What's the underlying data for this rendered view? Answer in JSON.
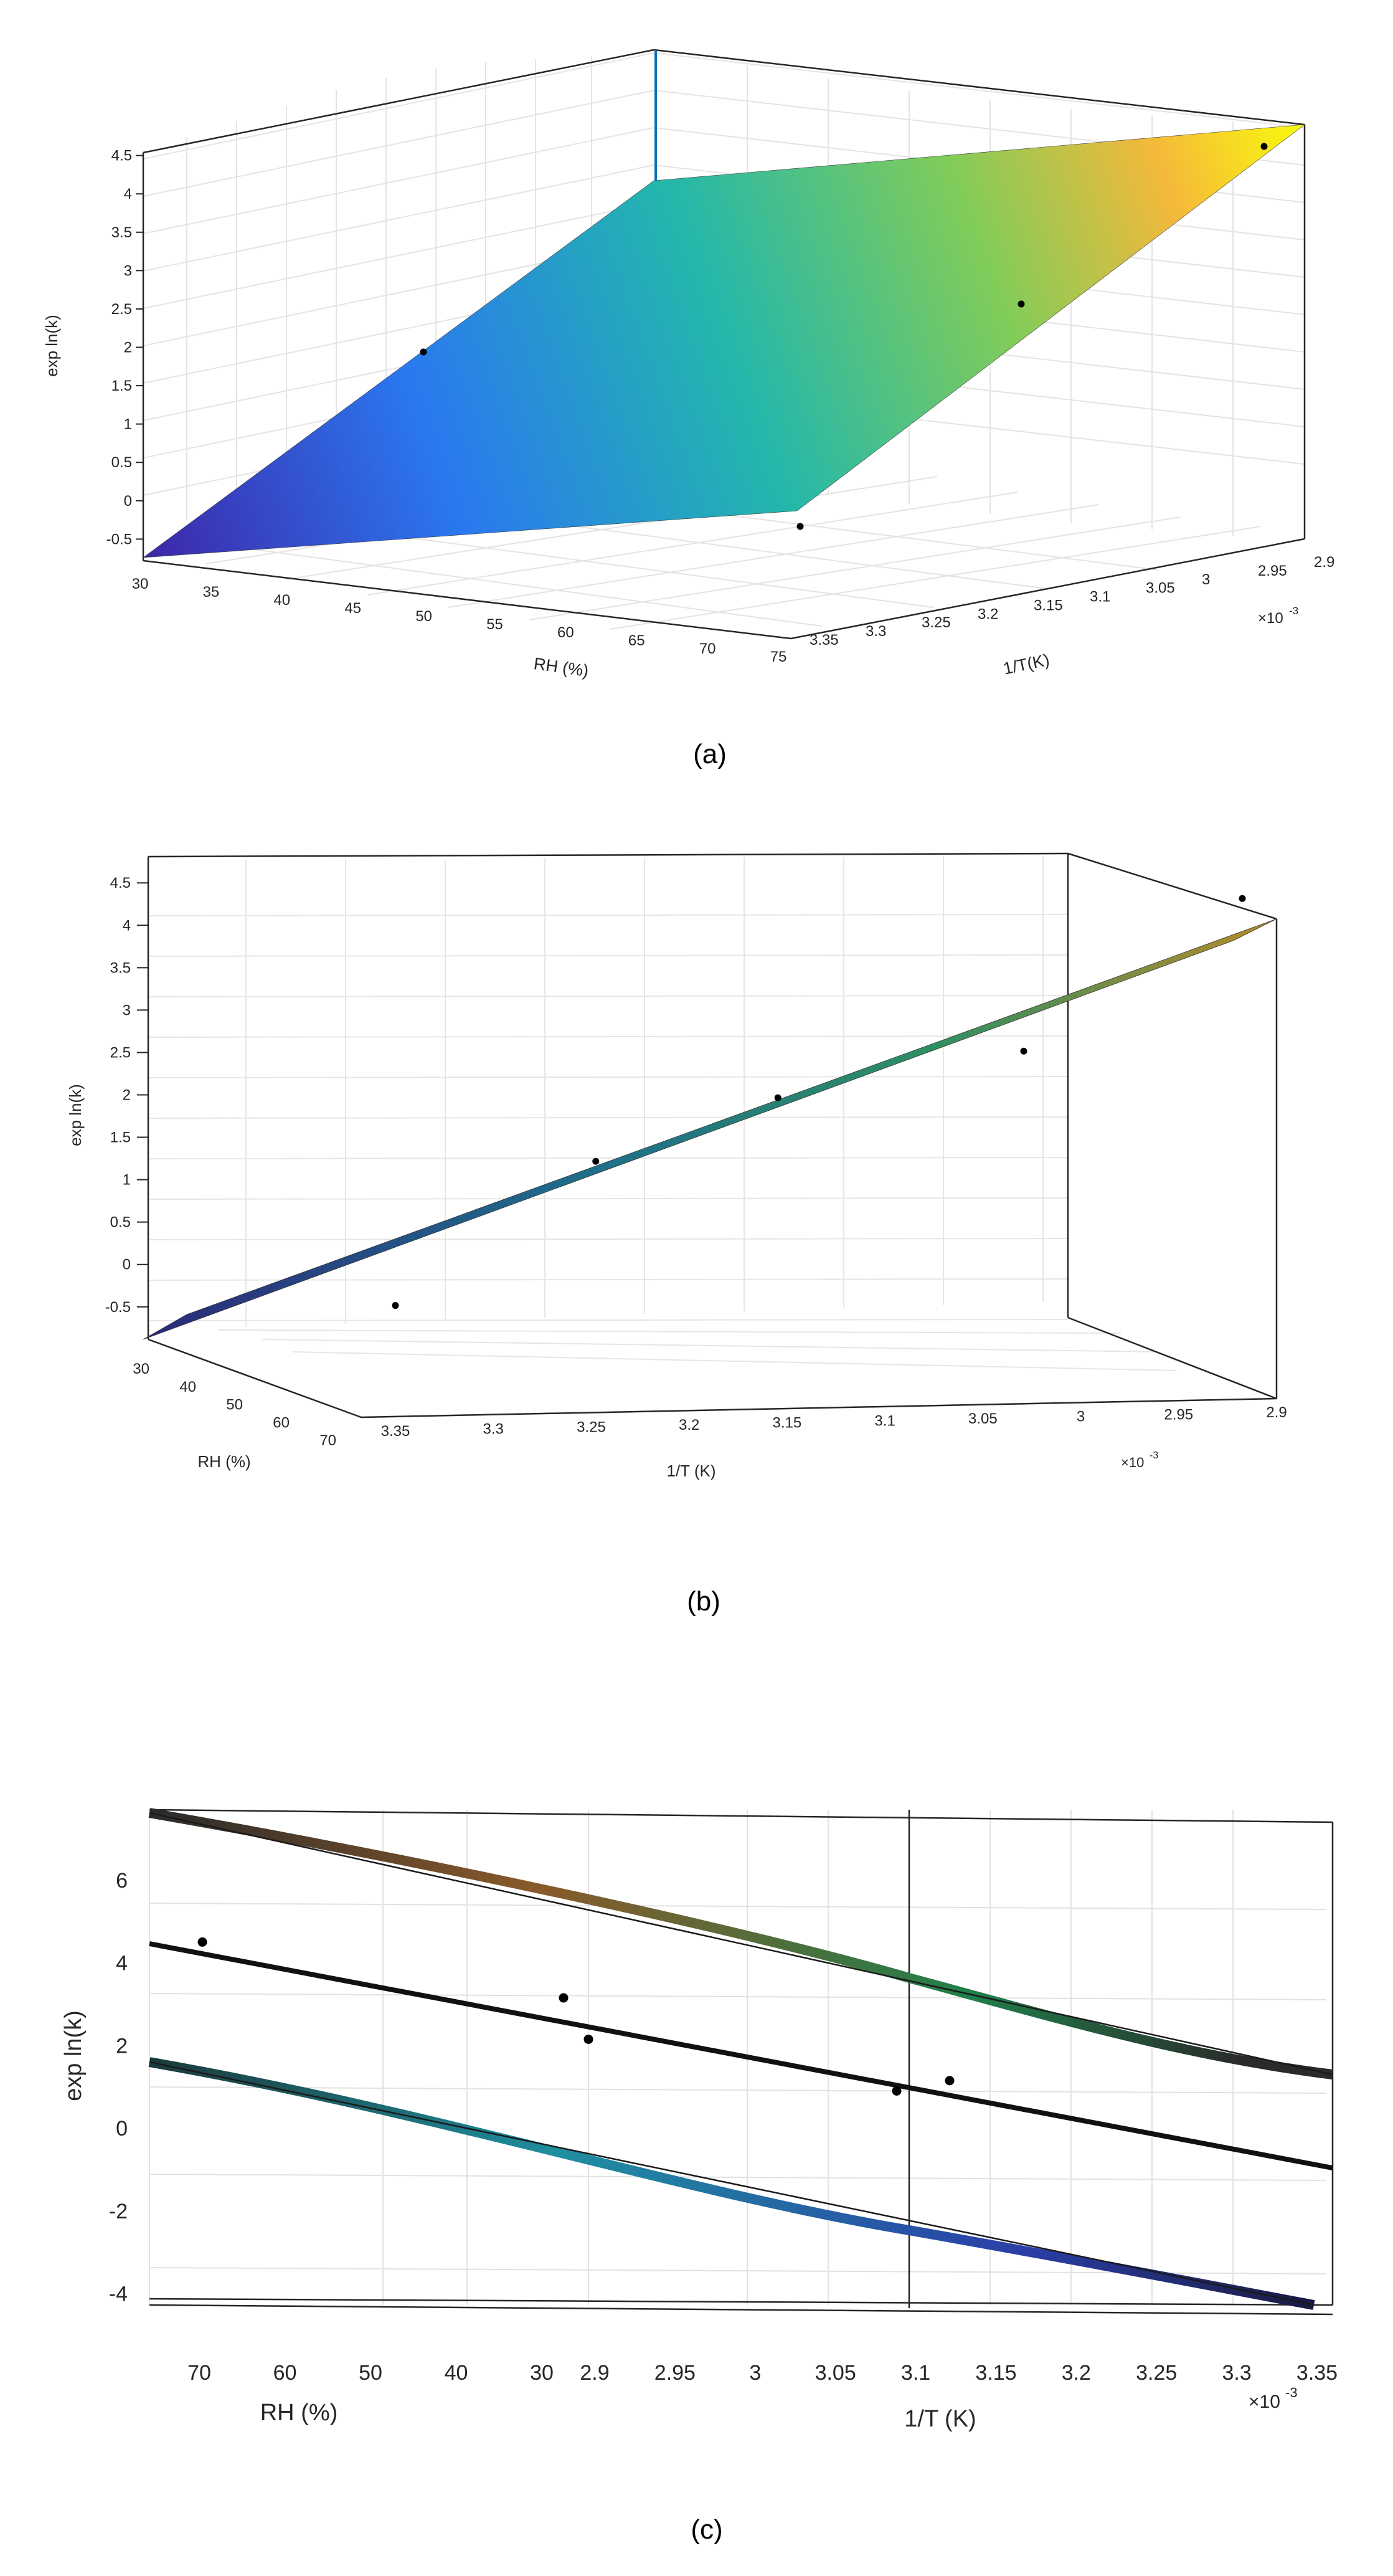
{
  "chart_data": [
    {
      "id": "a",
      "type": "surface",
      "caption": "(a)",
      "xlabel": "RH (%)",
      "ylabel": "1/T(K)",
      "zlabel": "exp ln(k)",
      "exponent_label": "×10",
      "exponent_value": "-3",
      "xlim": [
        30,
        78
      ],
      "ylim": [
        0.0029,
        0.00337
      ],
      "zlim": [
        -0.7,
        4.7
      ],
      "x_ticks": [
        "30",
        "35",
        "40",
        "45",
        "50",
        "55",
        "60",
        "65",
        "70",
        "75"
      ],
      "y_ticks": [
        "3.35",
        "3.3",
        "3.25",
        "3.2",
        "3.15",
        "3.1",
        "3.05",
        "3",
        "2.95",
        "2.9"
      ],
      "z_ticks": [
        "-0.5",
        "0",
        "0.5",
        "1",
        "1.5",
        "2",
        "2.5",
        "3",
        "3.5",
        "4",
        "4.5"
      ],
      "colormap": [
        "#3e26a8",
        "#2a78f0",
        "#23b7ac",
        "#81cc59",
        "#f5e34a",
        "#f9fb0e"
      ],
      "points": [
        {
          "rh": 30,
          "invT": 0.00336,
          "lnk": 2.25
        },
        {
          "rh": 75,
          "invT": 0.00336,
          "lnk": 0.9
        },
        {
          "rh": 60,
          "invT": 0.00302,
          "lnk": 2.7
        },
        {
          "rh": 75,
          "invT": 0.0029,
          "lnk": 4.5
        }
      ]
    },
    {
      "id": "b",
      "type": "surface",
      "caption": "(b)",
      "xlabel": "RH (%)",
      "ylabel": "1/T (K)",
      "zlabel": "exp ln(k)",
      "exponent_label": "×10",
      "exponent_value": "-3",
      "x_ticks": [
        "30",
        "40",
        "50",
        "60",
        "70"
      ],
      "y_ticks": [
        "3.35",
        "3.3",
        "3.25",
        "3.2",
        "3.15",
        "3.1",
        "3.05",
        "3",
        "2.95",
        "2.9"
      ],
      "z_ticks": [
        "-0.5",
        "0",
        "0.5",
        "1",
        "1.5",
        "2",
        "2.5",
        "3",
        "3.5",
        "4",
        "4.5"
      ],
      "zlim": [
        -0.7,
        4.7
      ],
      "points": [
        {
          "invT": 0.003365,
          "lnk": -0.3
        },
        {
          "invT": 0.003255,
          "lnk": 1.4
        },
        {
          "invT": 0.003155,
          "lnk": 2.15
        },
        {
          "invT": 0.00302,
          "lnk": 2.7
        },
        {
          "invT": 0.0029,
          "lnk": 4.5
        }
      ]
    },
    {
      "id": "c",
      "type": "surface",
      "caption": "(c)",
      "xlabel": "RH (%)",
      "ylabel": "1/T (K)",
      "zlabel": "exp ln(k)",
      "exponent_label": "×10",
      "exponent_value": "-3",
      "x_ticks": [
        "70",
        "60",
        "50",
        "40",
        "30"
      ],
      "y_ticks": [
        "2.9",
        "2.95",
        "3",
        "3.05",
        "3.1",
        "3.15",
        "3.2",
        "3.25",
        "3.3",
        "3.35"
      ],
      "z_ticks": [
        "6",
        "4",
        "2",
        "0",
        "-2",
        "-4"
      ],
      "zlim": [
        -4.2,
        7.7
      ],
      "points": [
        {
          "lnk": 4.5
        },
        {
          "lnk": 3.15
        },
        {
          "lnk": 2.15
        },
        {
          "lnk": 0.9
        },
        {
          "lnk": 1.15
        }
      ]
    }
  ]
}
